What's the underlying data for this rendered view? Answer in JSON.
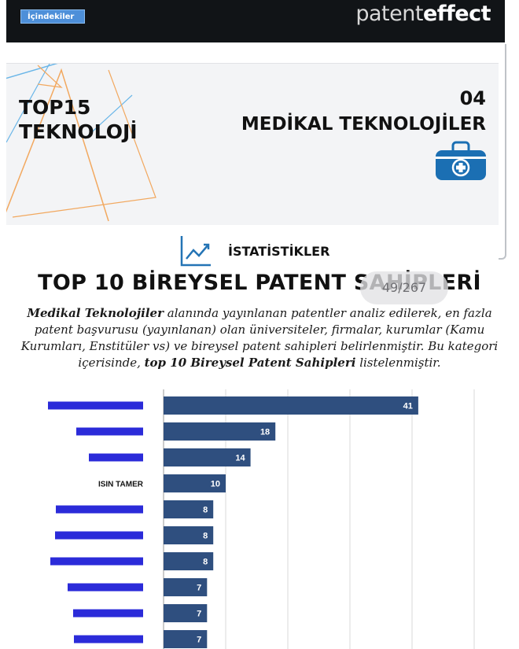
{
  "header": {
    "toc_label": "İçindekiler",
    "brand_light": "patent",
    "brand_bold": "effect"
  },
  "banner": {
    "top_line1": "TOP15",
    "top_line2": "TEKNOLOJİ",
    "section_number": "04",
    "section_title": "MEDİKAL TEKNOLOJİLER",
    "icon": "medical-kit-icon"
  },
  "stats": {
    "label": "İSTATİSTİKLER",
    "icon": "line-chart-icon"
  },
  "title": "TOP 10 BİREYSEL PATENT SAHİPLERİ",
  "page_indicator": "49/267",
  "description": {
    "p1_bold": "Medikal Teknolojiler",
    "p2": " alanında yayınlanan patentler analiz edilerek, en fazla patent başvurusu (yayınlanan) olan üniversiteler, firmalar, kurumlar (Kamu Kurumları, Enstitüler vs) ve bireysel patent sahipleri belirlenmiştir. Bu kategori içerisinde, ",
    "p3_bold": "top 10 Bireysel Patent Sahipleri",
    "p4": " listelenmiştir."
  },
  "chart_data": {
    "type": "bar",
    "orientation": "horizontal",
    "categories": [
      "",
      "",
      "",
      "ISIN TAMER",
      "",
      "",
      "",
      "",
      "",
      ""
    ],
    "values": [
      41,
      18,
      14,
      10,
      8,
      8,
      8,
      7,
      7,
      7
    ],
    "data_labels": [
      "41",
      "18",
      "14",
      "10",
      "8",
      "8",
      "8",
      "7",
      "7",
      "7"
    ],
    "xlim": [
      0,
      50
    ],
    "grid": true,
    "colors": {
      "bar": "#2f4f7f",
      "label_text": "#ffffff",
      "redaction": "#2b2bd9",
      "grid": "#d9d9d9"
    }
  }
}
